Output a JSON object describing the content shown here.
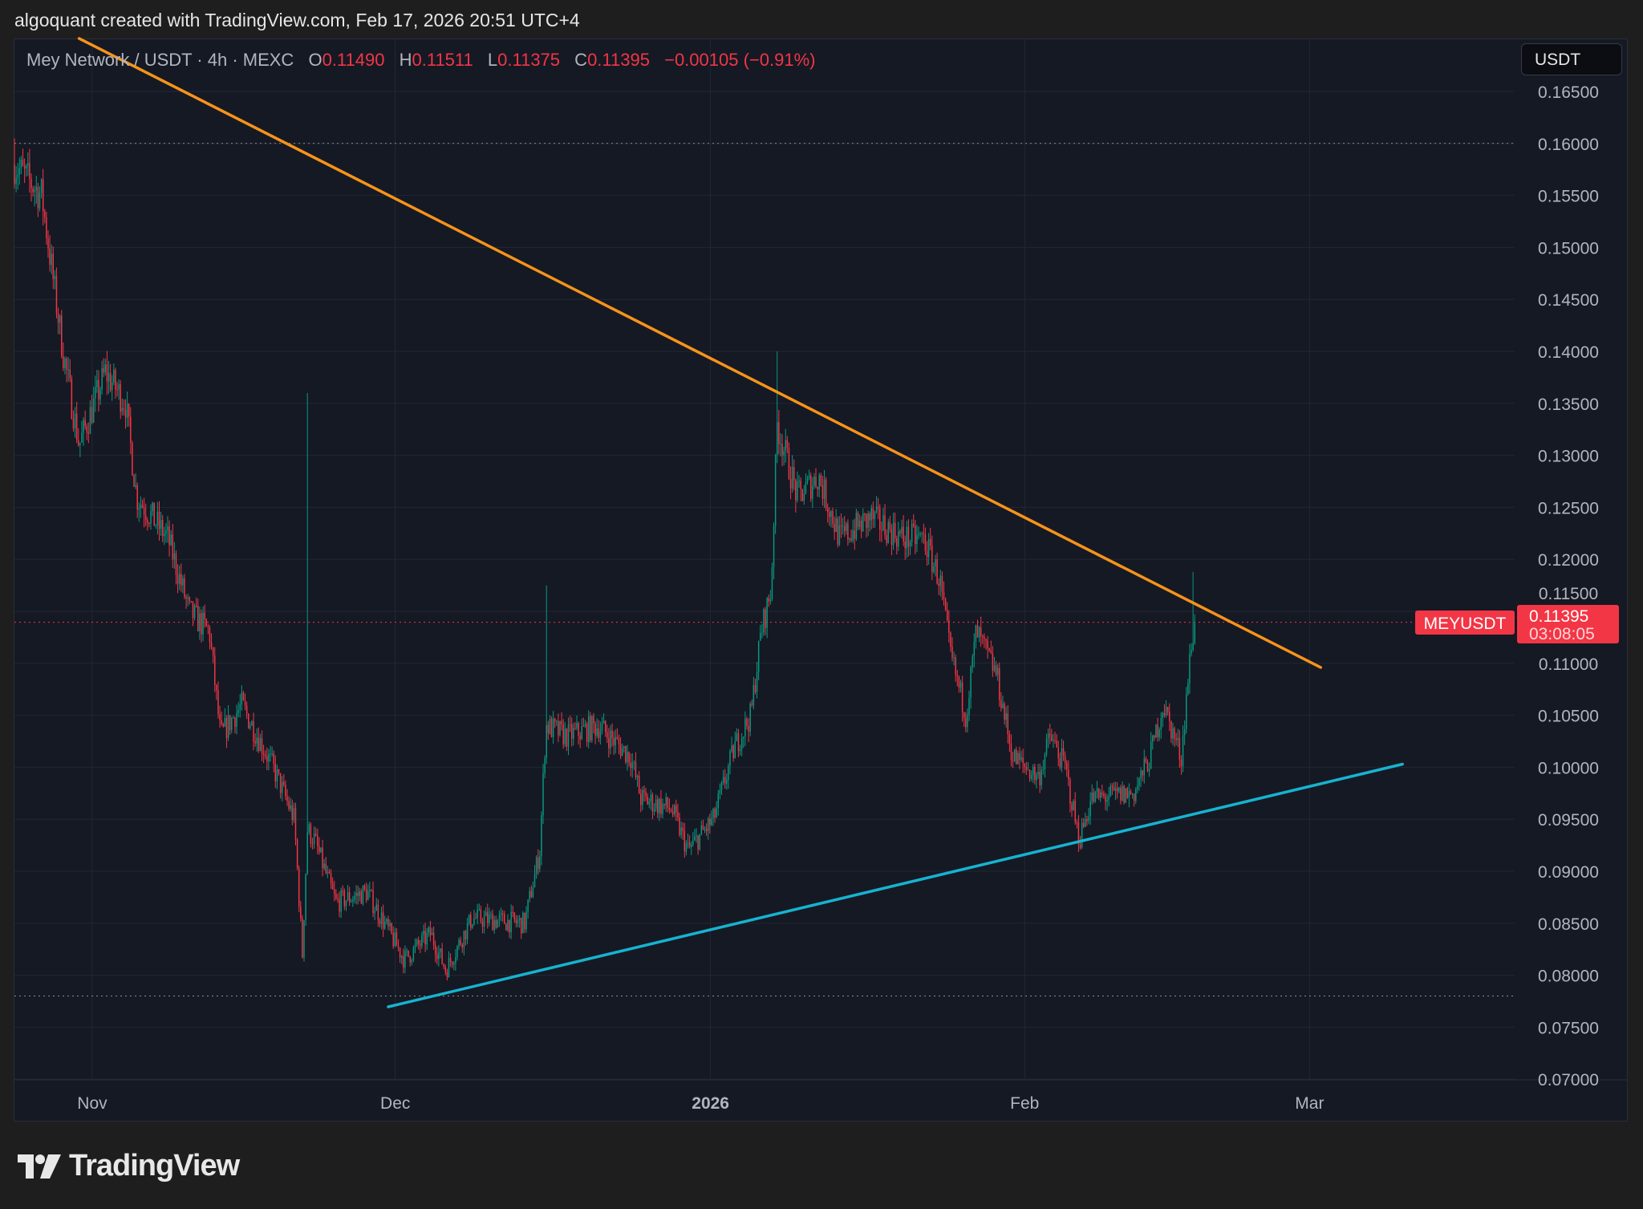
{
  "header": {
    "caption": "algoquant created with TradingView.com, Feb 17, 2026 20:51 UTC+4"
  },
  "legend": {
    "symbol": "Mey Network / USDT · 4h · MEXC",
    "o_label": "O",
    "o": "0.11490",
    "h_label": "H",
    "h": "0.11511",
    "l_label": "L",
    "l": "0.11375",
    "c_label": "C",
    "c": "0.11395",
    "change": "−0.00105 (−0.91%)"
  },
  "currency_button": "USDT",
  "price_tag": {
    "symbol": "MEYUSDT",
    "price": "0.11395",
    "countdown": "03:08:05"
  },
  "brand": "TradingView",
  "colors": {
    "up": "#089981",
    "down": "#f23645",
    "resistance": "#f7931a",
    "support": "#17b3d0",
    "background": "#151924"
  },
  "chart_data": {
    "type": "candlestick",
    "interval": "4h",
    "x_unit": "days since Oct 24, 2025",
    "ylim": [
      0.07,
      0.165
    ],
    "y_ticks": [
      "0.07000",
      "0.07500",
      "0.08000",
      "0.08500",
      "0.09000",
      "0.09500",
      "0.10000",
      "0.10500",
      "0.11000",
      "0.11500",
      "0.12000",
      "0.12500",
      "0.13000",
      "0.13500",
      "0.14000",
      "0.14500",
      "0.15000",
      "0.15500",
      "0.16000",
      "0.16500"
    ],
    "x_ticks": [
      {
        "label": "Nov",
        "day": 7.7
      },
      {
        "label": "Dec",
        "day": 37.7
      },
      {
        "label": "2026",
        "day": 68.9,
        "bold": true
      },
      {
        "label": "Feb",
        "day": 100
      },
      {
        "label": "Mar",
        "day": 128.2
      }
    ],
    "xlim": [
      0,
      148.5
    ],
    "close_path": [
      [
        0,
        0.158
      ],
      [
        2.7,
        0.155
      ],
      [
        4.8,
        0.14
      ],
      [
        6.4,
        0.131
      ],
      [
        9,
        0.138
      ],
      [
        11,
        0.135
      ],
      [
        12.1,
        0.126
      ],
      [
        15.2,
        0.122
      ],
      [
        17.3,
        0.115
      ],
      [
        19.3,
        0.113
      ],
      [
        20.4,
        0.103
      ],
      [
        22.5,
        0.106
      ],
      [
        25.6,
        0.1
      ],
      [
        27.7,
        0.095
      ],
      [
        28.5,
        0.082
      ],
      [
        29,
        0.094
      ],
      [
        29.7,
        0.093
      ],
      [
        31.8,
        0.087
      ],
      [
        34.9,
        0.088
      ],
      [
        38.6,
        0.0815
      ],
      [
        41.2,
        0.084
      ],
      [
        42.7,
        0.0805
      ],
      [
        45.3,
        0.0855
      ],
      [
        50.5,
        0.085
      ],
      [
        52,
        0.092
      ],
      [
        52.6,
        0.104
      ],
      [
        54.7,
        0.103
      ],
      [
        57.8,
        0.104
      ],
      [
        61,
        0.101
      ],
      [
        62,
        0.097
      ],
      [
        65,
        0.096
      ],
      [
        66.7,
        0.092
      ],
      [
        69.2,
        0.095
      ],
      [
        71.3,
        0.102
      ],
      [
        72.9,
        0.105
      ],
      [
        73.9,
        0.113
      ],
      [
        74.9,
        0.117
      ],
      [
        75.5,
        0.133
      ],
      [
        77.5,
        0.126
      ],
      [
        79.6,
        0.128
      ],
      [
        81.7,
        0.122
      ],
      [
        84.8,
        0.124
      ],
      [
        88,
        0.122
      ],
      [
        90,
        0.122
      ],
      [
        91.6,
        0.118
      ],
      [
        92.6,
        0.111
      ],
      [
        94.2,
        0.105
      ],
      [
        95.2,
        0.113
      ],
      [
        97.2,
        0.109
      ],
      [
        98.8,
        0.101
      ],
      [
        101.4,
        0.099
      ],
      [
        102.5,
        0.103
      ],
      [
        104,
        0.1
      ],
      [
        105.4,
        0.093
      ],
      [
        106.6,
        0.097
      ],
      [
        110.8,
        0.0975
      ],
      [
        112.4,
        0.101
      ],
      [
        113.7,
        0.106
      ],
      [
        115.5,
        0.101
      ],
      [
        116.2,
        0.109
      ],
      [
        116.8,
        0.11395
      ]
    ],
    "spikes": [
      [
        0,
        0.1605
      ],
      [
        29,
        0.136
      ],
      [
        52.6,
        0.1175
      ],
      [
        75.5,
        0.14
      ],
      [
        116.7,
        0.1188
      ]
    ],
    "last_price": 0.11395,
    "horizontal_levels": [
      0.16,
      0.078
    ],
    "trendlines": [
      {
        "name": "resistance",
        "from": [
          6.4,
          0.1701
        ],
        "to": [
          129.3,
          0.1096
        ]
      },
      {
        "name": "support",
        "from": [
          37,
          0.07696
        ],
        "to": [
          137.4,
          0.1003
        ]
      }
    ]
  }
}
